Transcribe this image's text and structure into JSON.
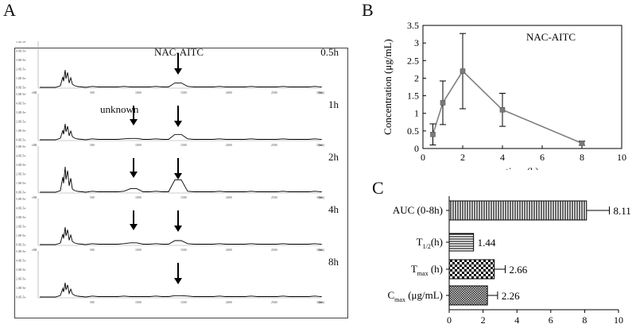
{
  "panels": {
    "a": "A",
    "b": "B",
    "c": "C"
  },
  "chromatograms": {
    "axis_labels": [
      "5.0E-5e-",
      "4.0E-5e-",
      "3.0E-5e-",
      "2.0E-5e-",
      "1.0E-5e-",
      "0.0E-5e-"
    ],
    "y_unit": "vMI",
    "x_ticks": [
      "500",
      "1000",
      "1500",
      "2000",
      "2500",
      "3000"
    ],
    "x_unit": "[ms]",
    "traces": [
      {
        "time": "0.5h",
        "unknown_arrow": false,
        "unknown_h": 0,
        "nac_h": 10,
        "lead_h": 22
      },
      {
        "time": "1h",
        "unknown_arrow": true,
        "unknown_h": 3,
        "nac_h": 12,
        "lead_h": 20
      },
      {
        "time": "2h",
        "unknown_arrow": true,
        "unknown_h": 8,
        "nac_h": 28,
        "lead_h": 32
      },
      {
        "time": "4h",
        "unknown_arrow": true,
        "unknown_h": 4,
        "nac_h": 9,
        "lead_h": 22
      },
      {
        "time": "8h",
        "unknown_arrow": false,
        "unknown_h": 0,
        "nac_h": 3,
        "lead_h": 18
      }
    ],
    "nac_label": "NAC-AITC",
    "unknown_label": "unknown"
  },
  "chart_data": [
    {
      "type": "line",
      "title": "NAC-AITC",
      "xlabel": "time (h)",
      "ylabel": "Concentration (μg/mL)",
      "xlim": [
        0,
        10
      ],
      "ylim": [
        0,
        3.5
      ],
      "x_ticks": [
        "0",
        "2",
        "4",
        "6",
        "8",
        "10"
      ],
      "y_ticks": [
        "0",
        "0.5",
        "1",
        "1.5",
        "2",
        "2.5",
        "3",
        "3.5"
      ],
      "x": [
        0.5,
        1,
        2,
        4,
        8
      ],
      "y": [
        0.4,
        1.3,
        2.2,
        1.1,
        0.15
      ],
      "error": [
        0.3,
        0.62,
        1.07,
        0.47,
        0.06
      ],
      "line_color": "#808080"
    },
    {
      "type": "bar",
      "orientation": "horizontal",
      "categories": [
        {
          "main": "AUC (0-8h)",
          "sub": "",
          "rest": ""
        },
        {
          "main": "T",
          "sub": "1/2",
          "rest": "(h)"
        },
        {
          "main": "T",
          "sub": "max",
          "rest": " (h)"
        },
        {
          "main": "C",
          "sub": "max",
          "rest": " (μg/mL)"
        }
      ],
      "values": [
        8.11,
        1.44,
        2.66,
        2.26
      ],
      "value_labels": [
        "8.11",
        "1.44",
        "2.66",
        "2.26"
      ],
      "error": [
        1.35,
        0,
        0.65,
        0.6
      ],
      "patterns": [
        "vertical-lines",
        "horizontal-lines",
        "checker",
        "fine-checker"
      ],
      "xlim": [
        0,
        10
      ],
      "x_ticks": [
        "0",
        "2",
        "4",
        "6",
        "8",
        "10"
      ]
    }
  ]
}
